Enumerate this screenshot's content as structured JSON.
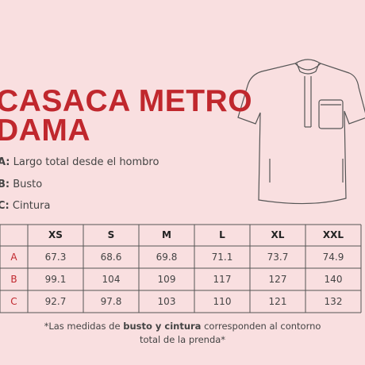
{
  "title_line1": "CASACA METRO",
  "title_line2": "DAMA",
  "legend": [
    {
      "letter": "A:",
      "text": " Largo total desde el hombro"
    },
    {
      "letter": "B:",
      "text": " Busto"
    },
    {
      "letter": "C:",
      "text": " Cintura"
    }
  ],
  "table": {
    "headers": [
      "XS",
      "S",
      "M",
      "L",
      "XL",
      "XXL"
    ],
    "rows": [
      {
        "label": "A",
        "values": [
          "67.3",
          "68.6",
          "69.8",
          "71.1",
          "73.7",
          "74.9"
        ]
      },
      {
        "label": "B",
        "values": [
          "99.1",
          "104",
          "109",
          "117",
          "127",
          "140"
        ]
      },
      {
        "label": "C",
        "values": [
          "92.7",
          "97.8",
          "103",
          "110",
          "121",
          "132"
        ]
      }
    ]
  },
  "note": {
    "before": "*Las medidas de ",
    "bold": "busto y cintura",
    "after": " corresponden al contorno",
    "line2": "total de la prenda*"
  }
}
